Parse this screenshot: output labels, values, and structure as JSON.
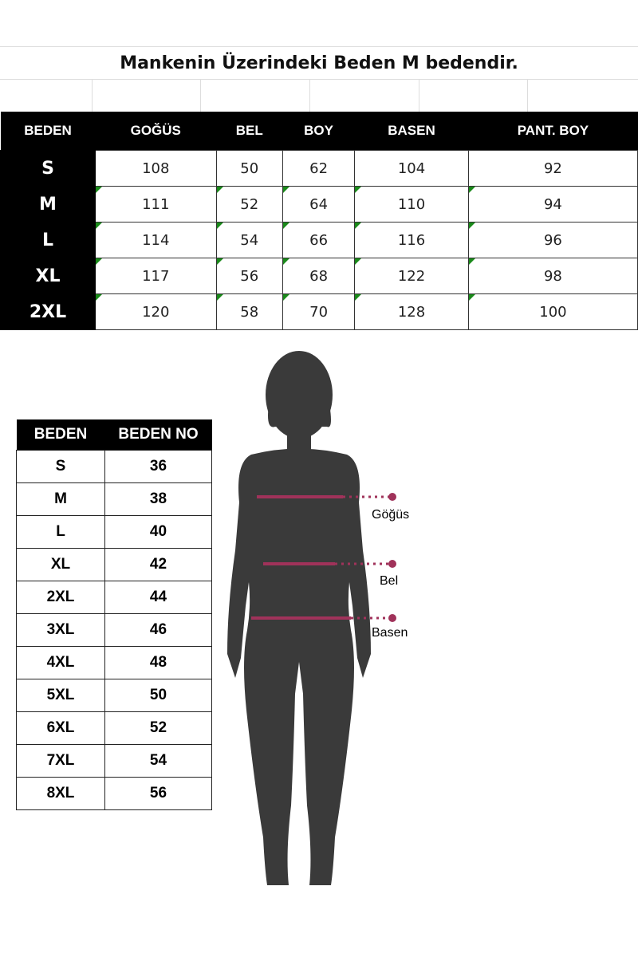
{
  "title": "Mankenin Üzerindeki Beden M bedendir.",
  "measure_table": {
    "headers": [
      "BEDEN",
      "GOĞÜS",
      "BEL",
      "BOY",
      "BASEN",
      "PANT. BOY"
    ],
    "rows": [
      [
        "S",
        "108",
        "50",
        "62",
        "104",
        "92"
      ],
      [
        "M",
        "111",
        "52",
        "64",
        "110",
        "94"
      ],
      [
        "L",
        "114",
        "54",
        "66",
        "116",
        "96"
      ],
      [
        "XL",
        "117",
        "56",
        "68",
        "122",
        "98"
      ],
      [
        "2XL",
        "120",
        "58",
        "70",
        "128",
        "100"
      ]
    ]
  },
  "size_table": {
    "headers": [
      "BEDEN",
      "BEDEN NO"
    ],
    "rows": [
      [
        "S",
        "36"
      ],
      [
        "M",
        "38"
      ],
      [
        "L",
        "40"
      ],
      [
        "XL",
        "42"
      ],
      [
        "2XL",
        "44"
      ],
      [
        "3XL",
        "46"
      ],
      [
        "4XL",
        "48"
      ],
      [
        "5XL",
        "50"
      ],
      [
        "6XL",
        "52"
      ],
      [
        "7XL",
        "54"
      ],
      [
        "8XL",
        "56"
      ]
    ]
  },
  "figure": {
    "labels": {
      "chest": "Göğüs",
      "waist": "Bel",
      "hip": "Basen"
    },
    "line_color": "#a0325a",
    "body_color": "#3a3a3a",
    "marker_color": "#1a8a1a"
  }
}
